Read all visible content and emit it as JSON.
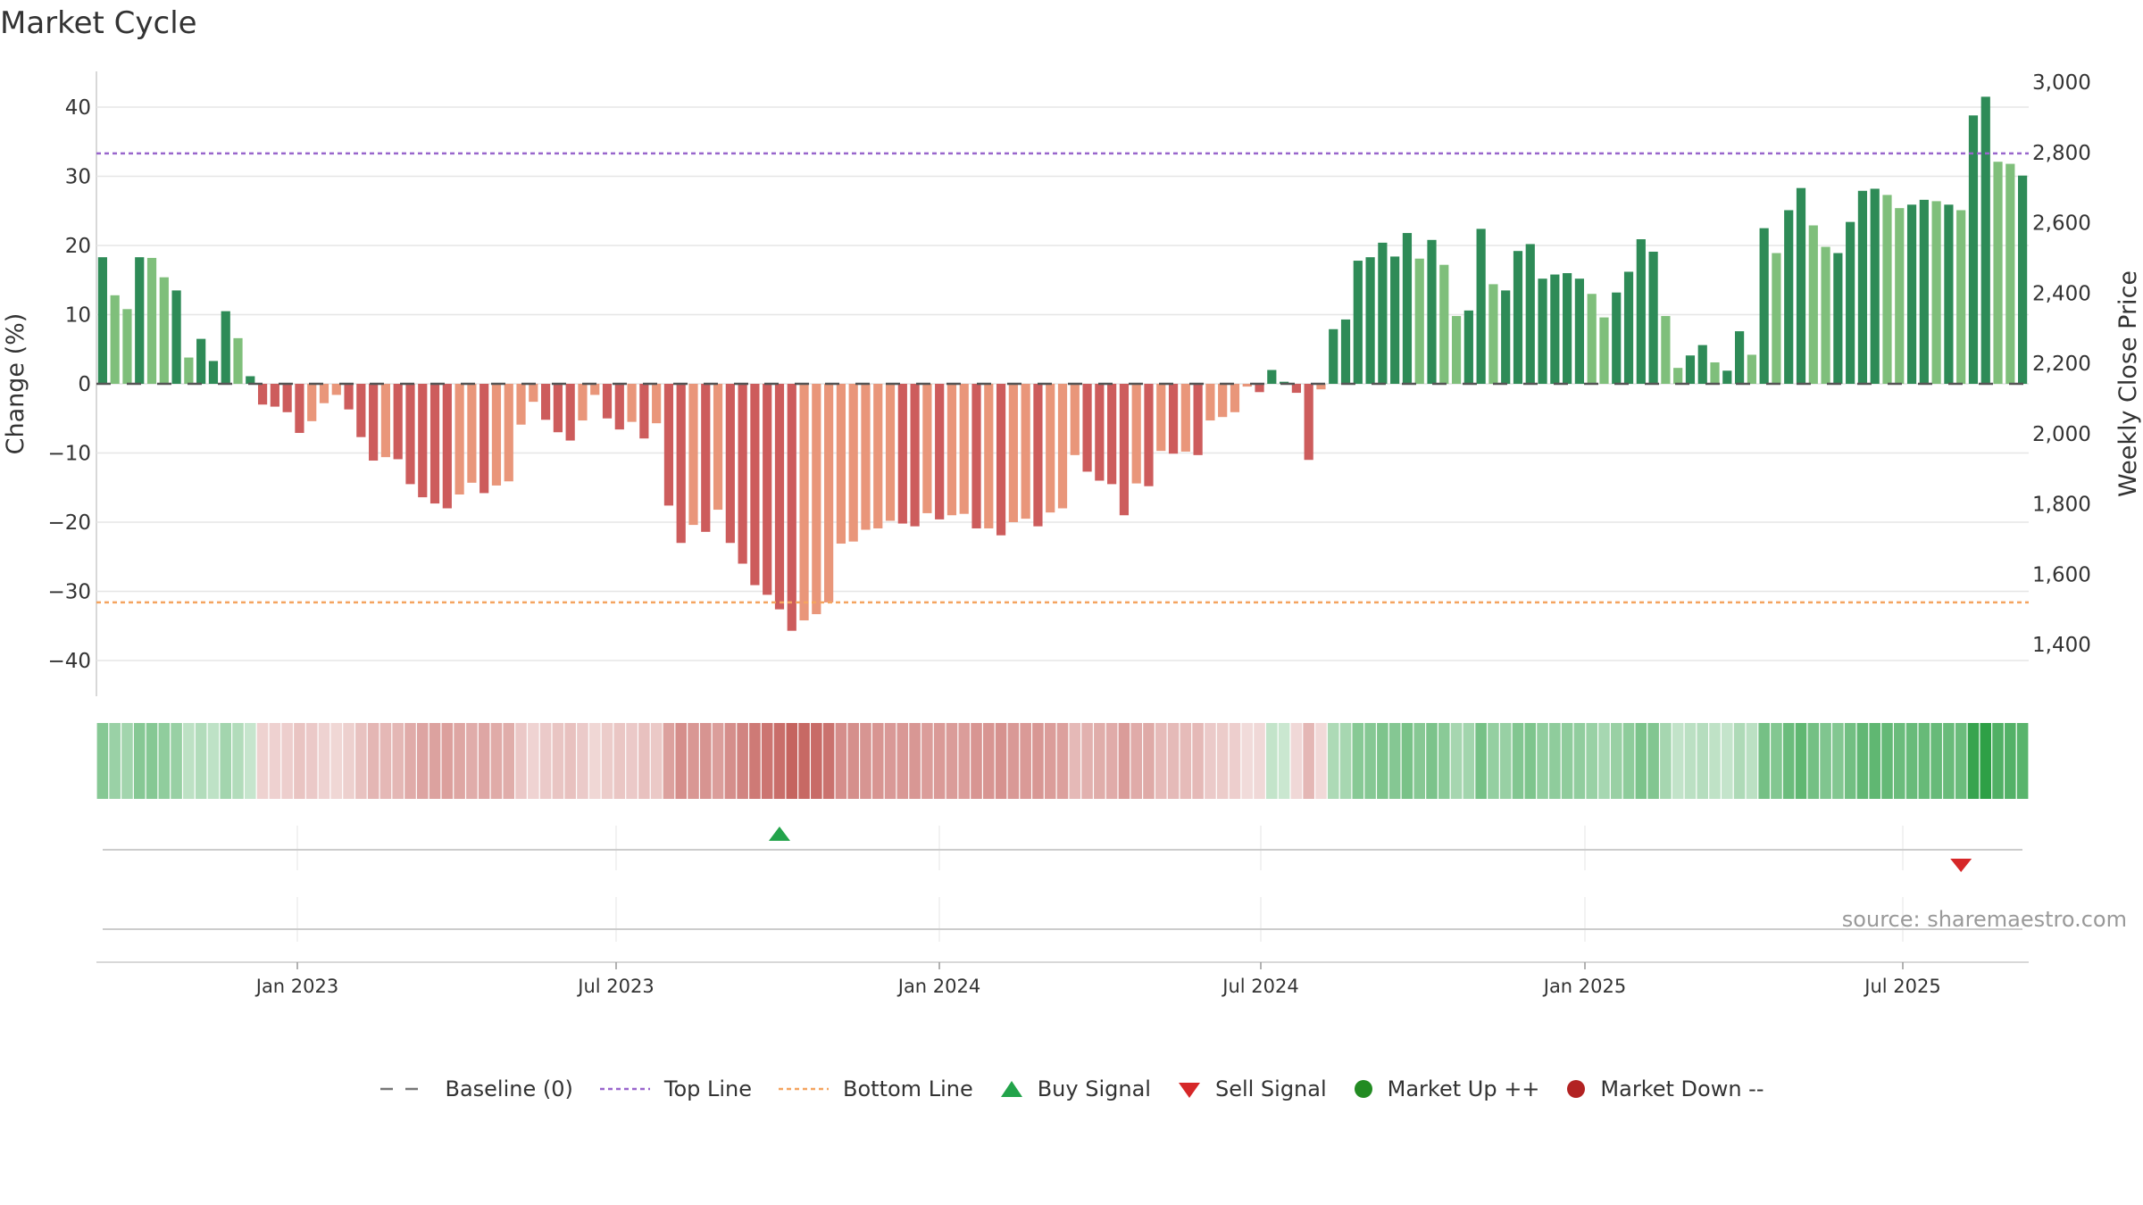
{
  "title": "Market Cycle",
  "source": "source: sharemaestro.com",
  "colors": {
    "dark_green": "#2e8b57",
    "light_green": "#7fbf7b",
    "dark_red": "#cd5c5c",
    "light_red": "#e9967a",
    "top_line": "#9966cc",
    "bottom_line": "#f4a460",
    "buy": "#22a34a",
    "sell": "#d62728",
    "market_up": "#228b22",
    "market_down": "#b22222",
    "baseline": "#555555"
  },
  "chart_data": {
    "type": "bar",
    "ylabel_left": "Change (%)",
    "ylabel_right": "Weekly Close Price",
    "ylim_left": [
      -45,
      45
    ],
    "ylim_right": [
      1250,
      3050
    ],
    "yticks_left": [
      "40",
      "30",
      "20",
      "10",
      "0",
      "−10",
      "−20",
      "−30",
      "−40"
    ],
    "yticks_right": [
      "3,000",
      "2,800",
      "2,600",
      "2,400",
      "2,200",
      "2,000",
      "1,800",
      "1,600",
      "1,400"
    ],
    "top_line": 33.3,
    "bottom_line": -31.6,
    "x_ticks": [
      "Jan 2023",
      "Jul 2023",
      "Jan 2024",
      "Jul 2024",
      "Jan 2025",
      "Jul 2025"
    ],
    "values": [
      18.3,
      12.8,
      10.8,
      18.3,
      18.2,
      15.4,
      13.5,
      3.8,
      6.5,
      3.3,
      10.5,
      6.6,
      1.1,
      -3.0,
      -3.3,
      -4.1,
      -7.1,
      -5.4,
      -2.8,
      -1.6,
      -3.7,
      -7.7,
      -11.1,
      -10.6,
      -10.9,
      -14.5,
      -16.4,
      -17.3,
      -18.0,
      -16.0,
      -14.3,
      -15.8,
      -14.7,
      -14.1,
      -5.9,
      -2.6,
      -5.2,
      -7.0,
      -8.2,
      -5.3,
      -1.6,
      -5.0,
      -6.6,
      -5.5,
      -7.9,
      -5.7,
      -17.6,
      -23.0,
      -20.4,
      -21.4,
      -18.2,
      -23.0,
      -26.0,
      -29.1,
      -30.5,
      -32.6,
      -35.7,
      -34.2,
      -33.3,
      -31.6,
      -23.1,
      -22.8,
      -21.1,
      -20.9,
      -19.8,
      -20.2,
      -20.6,
      -18.7,
      -19.6,
      -19.0,
      -18.8,
      -20.9,
      -20.9,
      -21.9,
      -20.0,
      -19.5,
      -20.6,
      -18.6,
      -18.0,
      -10.3,
      -12.7,
      -14.0,
      -14.5,
      -19.0,
      -14.4,
      -14.8,
      -9.7,
      -10.1,
      -9.8,
      -10.3,
      -5.3,
      -4.8,
      -4.1,
      -0.4,
      -1.2,
      2.0,
      0.3,
      -1.3,
      -11.0,
      -0.8,
      7.9,
      9.3,
      17.8,
      18.3,
      20.4,
      18.4,
      21.8,
      18.1,
      20.8,
      17.2,
      9.8,
      10.6,
      22.4,
      14.4,
      13.5,
      19.2,
      20.2,
      15.2,
      15.8,
      16.0,
      15.2,
      13.0,
      9.6,
      13.2,
      16.2,
      20.9,
      19.1,
      9.8,
      2.3,
      4.1,
      5.6,
      3.1,
      1.9,
      7.6,
      4.2,
      22.5,
      18.9,
      25.1,
      28.3,
      22.9,
      19.8,
      18.9,
      23.4,
      27.9,
      28.2,
      27.3,
      25.4,
      25.9,
      26.6,
      26.4,
      25.9,
      25.1,
      38.8,
      41.5,
      32.1,
      31.8,
      30.1
    ],
    "buy_signal_index": 55,
    "sell_signal_index": 151,
    "legend": [
      "Baseline (0)",
      "Top Line",
      "Bottom Line",
      "Buy Signal",
      "Sell Signal",
      "Market Up ++",
      "Market Down --"
    ]
  }
}
